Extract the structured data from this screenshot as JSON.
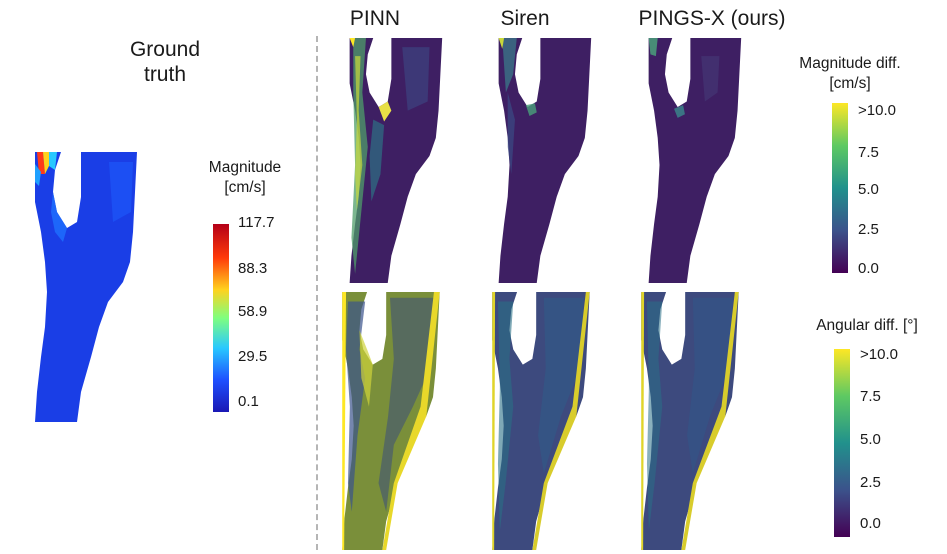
{
  "ground_truth": {
    "title_line1": "Ground",
    "title_line2": "truth"
  },
  "columns": [
    {
      "title": "PINN"
    },
    {
      "title": "Siren"
    },
    {
      "title": "PINGS-X (ours)"
    }
  ],
  "colorbars": {
    "magnitude": {
      "title_line1": "Magnitude",
      "title_line2": "[cm/s]",
      "ticks": [
        "117.7",
        "88.3",
        "58.9",
        "29.5",
        "0.1"
      ],
      "colormap": "jet",
      "colors": [
        "#b40018",
        "#ff3a0a",
        "#ffd21e",
        "#7fff7f",
        "#28c8ff",
        "#1e50ff",
        "#1a18b4"
      ]
    },
    "magnitude_diff": {
      "title_line1": "Magnitude diff.",
      "title_line2": "[cm/s]",
      "ticks": [
        ">10.0",
        "7.5",
        "5.0",
        "2.5",
        "0.0"
      ],
      "colormap": "viridis"
    },
    "angular_diff": {
      "title": "Angular diff. [°]",
      "ticks": [
        ">10.0",
        "7.5",
        "5.0",
        "2.5",
        "0.0"
      ],
      "colormap": "viridis"
    }
  },
  "colors": {
    "viridis": [
      "#fde725",
      "#5ec962",
      "#21918c",
      "#3b528b",
      "#440154"
    ],
    "vessel_gt": "#1a3ee6",
    "vessel_diff_bg": "#3e1f63",
    "edge_yellow": "#d9c832",
    "divider": "#b5b5b5"
  }
}
